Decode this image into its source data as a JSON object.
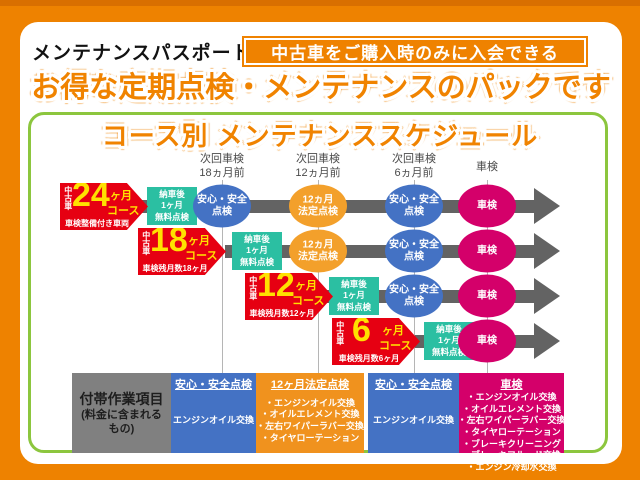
{
  "header": {
    "label": "メンテナンスパスポートとは",
    "badge": "中古車をご購入時のみに入会できる",
    "title": "お得な定期点検・メンテナンスのパックです"
  },
  "schedule": {
    "title": "コース別 メンテナンススケジュール",
    "columns": [
      "次回車検\n18ヵ月前",
      "次回車検\n12ヵ月前",
      "次回車検\n6ヵ月前",
      "車検"
    ],
    "node_labels": {
      "delivery": "納車後\n1ヶ月\n無料点検",
      "safety": "安心・安全\n点検",
      "legal": "12ヵ月\n法定点検",
      "shaken": "車検"
    },
    "courses": [
      {
        "side": "中古車",
        "number": "24",
        "unit": "ヶ月",
        "suffix": "コース",
        "note": "車検整備付き車両"
      },
      {
        "side": "中古車",
        "number": "18",
        "unit": "ヶ月",
        "suffix": "コース",
        "note": "車検残月数18ヶ月"
      },
      {
        "side": "中古車",
        "number": "12",
        "unit": "ヶ月",
        "suffix": "コース",
        "note": "車検残月数12ヶ月"
      },
      {
        "side": "中古車",
        "number": "6",
        "unit": "ヶ月",
        "suffix": "コース",
        "note": "車検残月数6ヶ月"
      }
    ]
  },
  "table": {
    "row_header_title": "付帯作業項目",
    "row_header_sub": "(料金に含まれる\nもの)",
    "cells": [
      {
        "header": "安心・安全点検",
        "items": [
          "エンジンオイル交換"
        ]
      },
      {
        "header": "12ヶ月法定点検",
        "items": [
          "・エンジンオイル交換",
          "・オイルエレメント交換",
          "・左右ワイパーラバー交換",
          "・タイヤローテーション"
        ]
      },
      {
        "header": "安心・安全点検",
        "items": [
          "エンジンオイル交換"
        ]
      },
      {
        "header": "車検",
        "items": [
          "・エンジンオイル交換",
          "・オイルエレメント交換",
          "・左右ワイパーラバー交換",
          "・タイヤローテーション",
          "・ブレーキクリーニング",
          "・ブレーキフルード交換",
          "・エンジン冷却水交換"
        ]
      }
    ]
  },
  "colors": {
    "page_orange": "#ee8200",
    "badge_orange": "#ef8200",
    "title_orange": "#f08300",
    "course_red": "#e60012",
    "course_yellow": "#ffe100",
    "delivery_teal": "#2bbfa2",
    "safety_blue": "#4472c4",
    "legal_orange": "#f3a02b",
    "shaken_magenta": "#d4006a",
    "timeline_gray": "#636363",
    "table_gray": "#808080",
    "panel_green": "#8cc63e"
  }
}
